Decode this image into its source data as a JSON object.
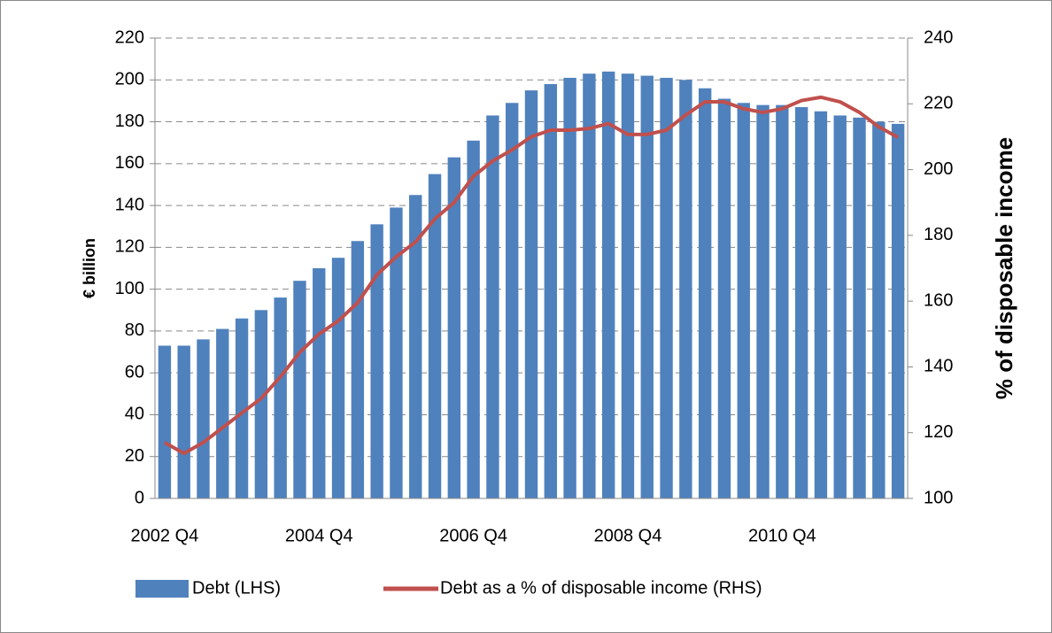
{
  "chart_data": {
    "type": "bar_line",
    "categories": [
      "2002 Q4",
      null,
      null,
      null,
      null,
      null,
      null,
      null,
      "2004 Q4",
      null,
      null,
      null,
      null,
      null,
      null,
      null,
      "2006 Q4",
      null,
      null,
      null,
      null,
      null,
      null,
      null,
      "2008 Q4",
      null,
      null,
      null,
      null,
      null,
      null,
      null,
      "2010 Q4",
      null,
      null,
      null,
      null,
      null,
      null
    ],
    "series": [
      {
        "name": "Debt (LHS)",
        "type": "bar",
        "color": "#4f81bd",
        "values": [
          73,
          73,
          76,
          81,
          86,
          90,
          96,
          104,
          110,
          115,
          123,
          131,
          139,
          145,
          155,
          163,
          171,
          183,
          189,
          195,
          198,
          201,
          203,
          204,
          203,
          202,
          201,
          200,
          196,
          191,
          189,
          188,
          188,
          187,
          185,
          183,
          182,
          180,
          179
        ]
      },
      {
        "name": "Debt as a % of disposable income (RHS)",
        "type": "line",
        "axis": "y2",
        "color": "#c0504d",
        "values": [
          117,
          113.7,
          117,
          121.5,
          126,
          130.4,
          137,
          144.4,
          150,
          154,
          159.5,
          168,
          173.5,
          178,
          185,
          190,
          198,
          202.6,
          206,
          210,
          212,
          212,
          212.5,
          214,
          210.7,
          210.7,
          212,
          216.6,
          220.6,
          220.6,
          218.5,
          217.4,
          218.5,
          221,
          222,
          220.6,
          217.4,
          213,
          209.8
        ]
      }
    ],
    "y_label": "€ billion",
    "y2_label": "% of disposable income",
    "ylim": [
      0,
      220
    ],
    "yticks": [
      0,
      20,
      40,
      60,
      80,
      100,
      120,
      140,
      160,
      180,
      200,
      220
    ],
    "y2lim": [
      100,
      240
    ],
    "y2ticks": [
      100,
      120,
      140,
      160,
      180,
      200,
      220,
      240
    ],
    "grid": true,
    "legend": "bottom"
  }
}
